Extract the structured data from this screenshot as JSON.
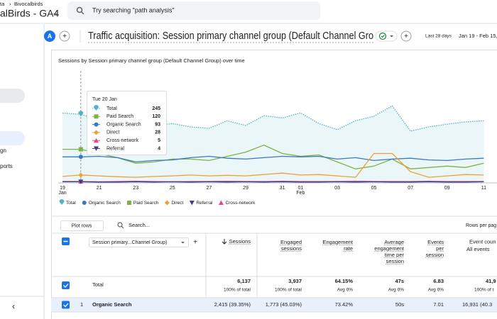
{
  "header": {
    "breadcrumb": [
      "ta",
      "Bivocalbirds"
    ],
    "property": "alBirds - GA4",
    "search_placeholder": "Try searching \"path analysis\""
  },
  "sidebar": {
    "items": [
      "gn",
      "ports"
    ]
  },
  "report": {
    "avatar": "A",
    "title": "Traffic acquisition: Session primary channel group (Default Channel Gro",
    "date_range_label": "Last 28 days",
    "date_range": "Jan 19 - Feb 15,"
  },
  "chart": {
    "type": "line",
    "title": "Sessions by Session primary channel group (Default Channel Group) over time",
    "categories": [
      "19",
      null,
      "21",
      null,
      "23",
      null,
      "25",
      null,
      "27",
      null,
      "29",
      null,
      "31",
      "01",
      null,
      "03",
      null,
      "05",
      null,
      "07",
      null,
      "09",
      null,
      "11"
    ],
    "category_months": [
      "Jan",
      null,
      null,
      null,
      null,
      null,
      null,
      null,
      null,
      null,
      null,
      null,
      null,
      "Feb",
      null,
      null,
      null,
      null,
      null,
      null,
      null,
      null,
      null,
      null
    ],
    "ylim": [
      0,
      400
    ],
    "tooltip": {
      "date": "Tue 20 Jan"
    },
    "series": [
      {
        "name": "Total",
        "color": "#4fb3c9",
        "marker": "pin",
        "line_style": "dotted",
        "area": true,
        "values": [
          249,
          245,
          225,
          238,
          218,
          205,
          212,
          200,
          195,
          222,
          205,
          240,
          232,
          250,
          212,
          190,
          222,
          238,
          275,
          185,
          200,
          210,
          218,
          222
        ]
      },
      {
        "name": "Paid Search",
        "color": "#7cb342",
        "marker": "square",
        "values": [
          120,
          120,
          105,
          90,
          70,
          75,
          85,
          85,
          80,
          95,
          110,
          135,
          105,
          95,
          100,
          75,
          50,
          60,
          85,
          50,
          55,
          60,
          55,
          70
        ]
      },
      {
        "name": "Organic Search",
        "color": "#3b78c2",
        "marker": "circle",
        "values": [
          93,
          93,
          95,
          90,
          75,
          80,
          82,
          90,
          95,
          88,
          85,
          90,
          95,
          93,
          95,
          85,
          90,
          80,
          85,
          88,
          82,
          80,
          85,
          88
        ]
      },
      {
        "name": "Direct",
        "color": "#f0a030",
        "marker": "diamond",
        "values": [
          23,
          28,
          25,
          22,
          20,
          23,
          25,
          28,
          25,
          27,
          25,
          30,
          35,
          28,
          30,
          25,
          20,
          105,
          105,
          40,
          20,
          25,
          30,
          28
        ]
      },
      {
        "name": "Cross-network",
        "color": "#e8458b",
        "marker": "triangle",
        "values": [
          5,
          5,
          4,
          5,
          6,
          5,
          4,
          5,
          5,
          6,
          5,
          5,
          6,
          5,
          5,
          5,
          6,
          5,
          5,
          5,
          6,
          5,
          5,
          5
        ]
      },
      {
        "name": "Referral",
        "color": "#3f3c8a",
        "marker": "triangle-down",
        "values": [
          4,
          4,
          3,
          3,
          4,
          3,
          4,
          3,
          4,
          3,
          4,
          3,
          4,
          3,
          3,
          4,
          3,
          4,
          3,
          3,
          4,
          3,
          3,
          4
        ]
      }
    ]
  },
  "table": {
    "plot_rows": "Plot rows",
    "search": "Search...",
    "rows_per_page": "Rows per pag",
    "dimension": "Session primary...Channel Group)",
    "columns": [
      {
        "name": "Sessions",
        "total": "6,137",
        "total_sub": "100% of total"
      },
      {
        "name": "Engaged sessions",
        "total": "3,937",
        "total_sub": "100% of total"
      },
      {
        "name": "Engagement rate",
        "total": "64.15%",
        "total_sub": "Avg 0%"
      },
      {
        "name": "Average engagement time per session",
        "total": "47s",
        "total_sub": "Avg 0%"
      },
      {
        "name": "Events per session",
        "total": "6.83",
        "total_sub": "Avg 0%"
      },
      {
        "name": "Event coun",
        "sub": "All events",
        "total": "41,9",
        "total_sub": "100% of t"
      }
    ],
    "total_label": "Total",
    "rows": [
      {
        "rank": "1",
        "name": "Organic Search",
        "values": [
          "2,415 (39.35%)",
          "1,773 (45.03%)",
          "73.42%",
          "50s",
          "7.01",
          "16,931 (40.3"
        ]
      }
    ]
  }
}
